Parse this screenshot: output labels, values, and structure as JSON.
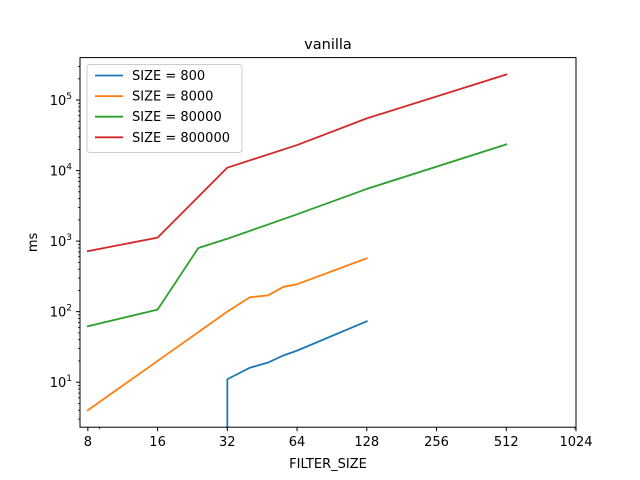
{
  "chart_data": {
    "type": "line",
    "title": "vanilla",
    "xlabel": "FILTER_SIZE",
    "ylabel": "ms",
    "xscale": "log2",
    "yscale": "log10",
    "xlim": [
      7.4,
      1024
    ],
    "ylim": [
      2.3,
      400000
    ],
    "x_ticks": [
      {
        "value": 8,
        "label": "8"
      },
      {
        "value": 16,
        "label": "16"
      },
      {
        "value": 32,
        "label": "32"
      },
      {
        "value": 64,
        "label": "64"
      },
      {
        "value": 128,
        "label": "128"
      },
      {
        "value": 256,
        "label": "256"
      },
      {
        "value": 512,
        "label": "512"
      },
      {
        "value": 1024,
        "label": "1024"
      }
    ],
    "y_ticks": [
      {
        "value": 10,
        "base": "10",
        "exp": "1"
      },
      {
        "value": 100,
        "base": "10",
        "exp": "2"
      },
      {
        "value": 1000,
        "base": "10",
        "exp": "3"
      },
      {
        "value": 10000,
        "base": "10",
        "exp": "4"
      },
      {
        "value": 100000,
        "base": "10",
        "exp": "5"
      }
    ],
    "legend_position": "top-left",
    "grid": false,
    "series": [
      {
        "name": "SIZE = 800",
        "color": "#1f77b4",
        "x": [
          32,
          32,
          40,
          48,
          56,
          64,
          128
        ],
        "y": [
          2.3,
          11,
          16,
          19,
          24,
          28,
          73
        ]
      },
      {
        "name": "SIZE = 8000",
        "color": "#ff7f0e",
        "x": [
          8,
          16,
          32,
          40,
          48,
          56,
          64,
          128
        ],
        "y": [
          4,
          20,
          100,
          160,
          170,
          225,
          245,
          570
        ]
      },
      {
        "name": "SIZE = 80000",
        "color": "#2ca02c",
        "x": [
          8,
          16,
          24,
          32,
          64,
          128,
          512
        ],
        "y": [
          62,
          107,
          800,
          1080,
          2400,
          5500,
          23500
        ]
      },
      {
        "name": "SIZE = 800000",
        "color": "#d62728",
        "x": [
          8,
          16,
          32,
          64,
          128,
          512
        ],
        "y": [
          720,
          1120,
          11000,
          23000,
          55000,
          230000
        ]
      }
    ]
  }
}
